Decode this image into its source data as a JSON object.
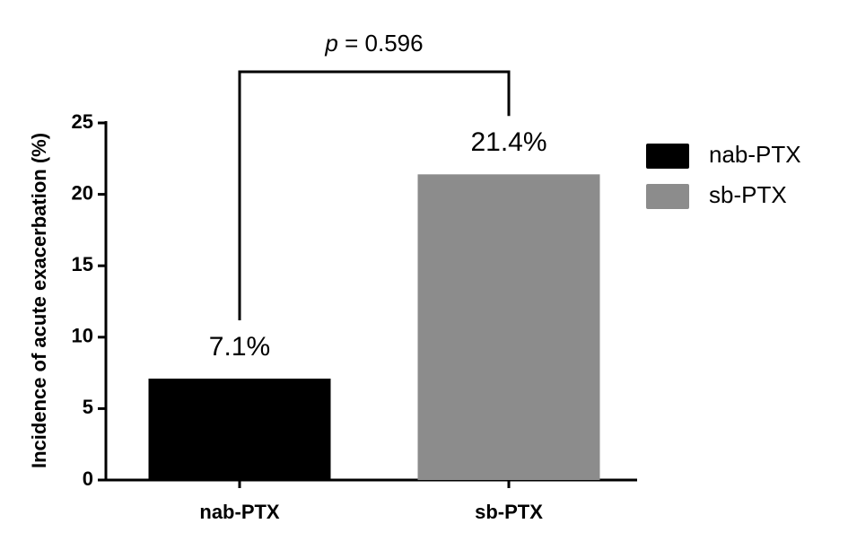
{
  "chart_data": {
    "type": "bar",
    "y_axis_label": "Incidence of acute exacerbation (%)",
    "categories": [
      "nab-PTX",
      "sb-PTX"
    ],
    "values": [
      7.1,
      21.4
    ],
    "value_labels": [
      "7.1%",
      "21.4%"
    ],
    "colors": [
      "#000000",
      "#8c8c8c"
    ],
    "ylim": [
      0,
      25
    ],
    "yticks": [
      0,
      5,
      10,
      15,
      20,
      25
    ],
    "legend": "right",
    "annotation": {
      "symbol": "p",
      "text": "= 0.596"
    }
  }
}
